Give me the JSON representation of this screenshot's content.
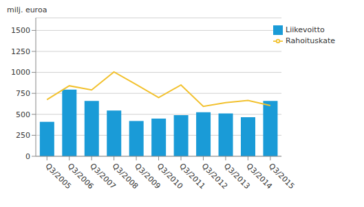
{
  "chart_data": {
    "type": "bar",
    "y_label": "milj. euroa",
    "categories": [
      "Q3/2005",
      "Q3/2006",
      "Q3/2007",
      "Q3/2008",
      "Q3/2009",
      "Q3/2010",
      "Q3/2011",
      "Q3/2012",
      "Q3/2013",
      "Q3/2014",
      "Q3/2015"
    ],
    "series": [
      {
        "name": "Liikevoitto",
        "type": "bar",
        "color": "#1a9bd7",
        "values": [
          410,
          795,
          660,
          545,
          420,
          450,
          490,
          525,
          510,
          465,
          660
        ]
      },
      {
        "name": "Rahoituskate",
        "type": "line",
        "color": "#f2c12e",
        "values": [
          675,
          840,
          790,
          1005,
          855,
          700,
          850,
          595,
          640,
          665,
          605
        ]
      }
    ],
    "ylim": [
      0,
      1650
    ],
    "yticks": [
      0,
      250,
      500,
      750,
      1000,
      1250,
      1500
    ],
    "grid": true,
    "legend": "top-right"
  }
}
